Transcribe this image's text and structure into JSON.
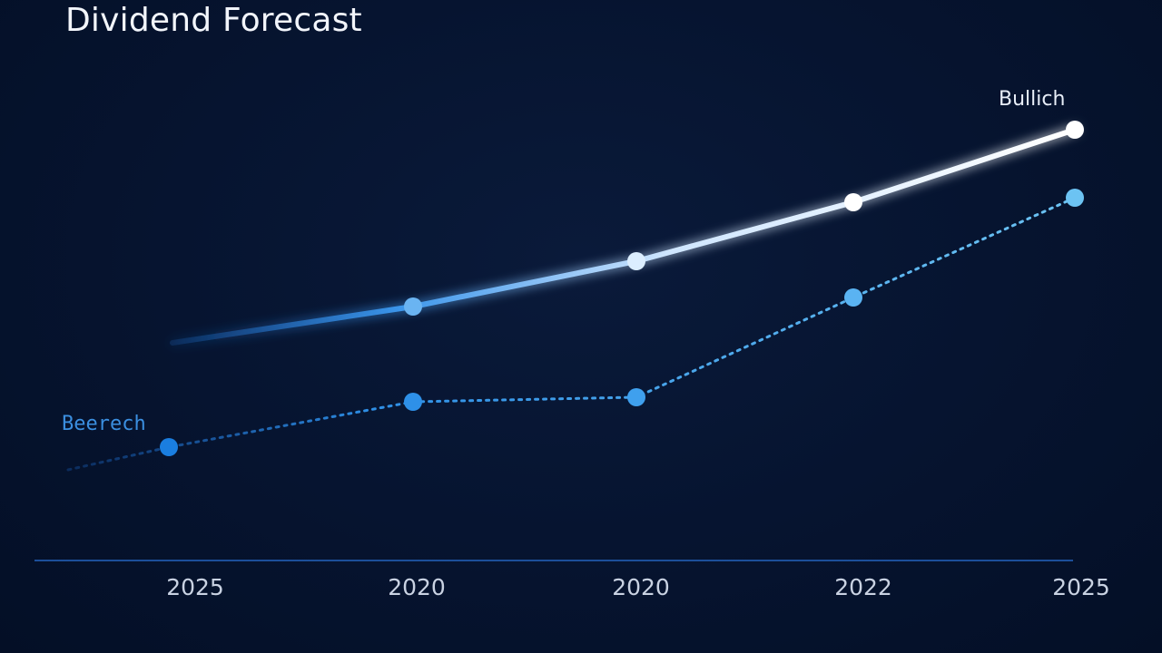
{
  "chart_data": {
    "type": "line",
    "title": "Dividend Forecast",
    "xlabel": "",
    "ylabel": "",
    "categories": [
      "2025",
      "2020",
      "2020",
      "2022",
      "2025"
    ],
    "ylim": [
      0,
      100
    ],
    "grid": false,
    "series": [
      {
        "name": "Bullich",
        "values": [
          48,
          56,
          66,
          79,
          95
        ],
        "style": "solid",
        "color": "#ffffff",
        "start_color": "#1e6fd0"
      },
      {
        "name": "Beerech",
        "values": [
          25,
          35,
          36,
          58,
          80
        ],
        "style": "dotted",
        "color": "#5fb8f0",
        "start_color": "#1a7ee0"
      }
    ],
    "colors": {
      "background": "#061430",
      "baseline": "#1c4f9a"
    }
  }
}
